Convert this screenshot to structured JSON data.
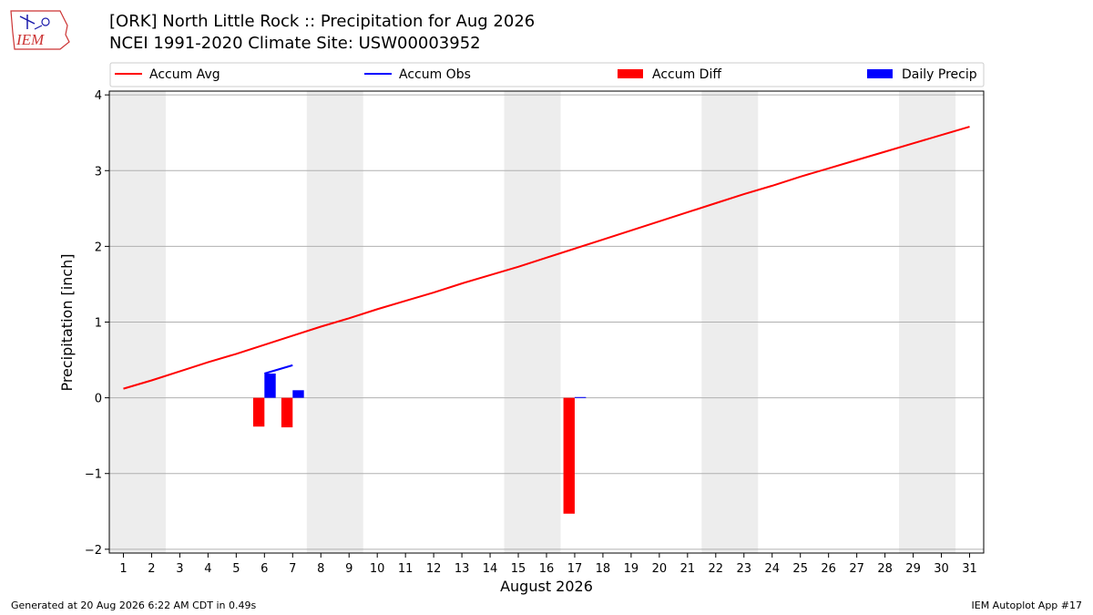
{
  "header": {
    "title_line1": "[ORK] North Little Rock :: Precipitation for Aug 2026",
    "title_line2": "NCEI 1991-2020 Climate Site: USW00003952",
    "logo_text": "IEM"
  },
  "footer": {
    "generated": "Generated at 20 Aug 2026 6:22 AM CDT in 0.49s",
    "app": "IEM Autoplot App #17"
  },
  "colors": {
    "accum_avg": "#ff0000",
    "accum_obs": "#0000ff",
    "accum_diff": "#ff0000",
    "daily_precip": "#0000ff",
    "weekend_band": "#ededed",
    "grid": "#b0b0b0"
  },
  "chart_data": {
    "type": "line",
    "xlabel": "August 2026",
    "ylabel": "Precipitation [inch]",
    "xlim": [
      0.5,
      31.5
    ],
    "ylim": [
      -2.05,
      4.05
    ],
    "yticks": [
      -2,
      -1,
      0,
      1,
      2,
      3,
      4
    ],
    "ytick_labels": [
      "−2",
      "−1",
      "0",
      "1",
      "2",
      "3",
      "4"
    ],
    "xticks": [
      1,
      2,
      3,
      4,
      5,
      6,
      7,
      8,
      9,
      10,
      11,
      12,
      13,
      14,
      15,
      16,
      17,
      18,
      19,
      20,
      21,
      22,
      23,
      24,
      25,
      26,
      27,
      28,
      29,
      30,
      31
    ],
    "grid": "horizontal",
    "legend_placement": "top, above plot",
    "weekend_days": [
      [
        1,
        2
      ],
      [
        8,
        9
      ],
      [
        15,
        16
      ],
      [
        22,
        23
      ],
      [
        29,
        30
      ]
    ],
    "legend": [
      {
        "label": "Accum Avg",
        "kind": "line",
        "color": "#ff0000"
      },
      {
        "label": "Accum Obs",
        "kind": "line",
        "color": "#0000ff"
      },
      {
        "label": "Accum Diff",
        "kind": "bar",
        "color": "#ff0000"
      },
      {
        "label": "Daily Precip",
        "kind": "bar",
        "color": "#0000ff"
      }
    ],
    "series": [
      {
        "name": "Accum Avg",
        "type": "line",
        "color": "#ff0000",
        "x": [
          1,
          2,
          3,
          4,
          5,
          6,
          7,
          8,
          9,
          10,
          11,
          12,
          13,
          14,
          15,
          16,
          17,
          18,
          19,
          20,
          21,
          22,
          23,
          24,
          25,
          26,
          27,
          28,
          29,
          30,
          31
        ],
        "values": [
          0.12,
          0.23,
          0.35,
          0.47,
          0.58,
          0.7,
          0.82,
          0.94,
          1.05,
          1.17,
          1.28,
          1.39,
          1.51,
          1.62,
          1.73,
          1.85,
          1.97,
          2.09,
          2.21,
          2.33,
          2.45,
          2.57,
          2.69,
          2.8,
          2.92,
          3.03,
          3.14,
          3.25,
          3.36,
          3.47,
          3.58
        ]
      },
      {
        "name": "Accum Obs",
        "type": "line",
        "color": "#0000ff",
        "x": [
          6,
          7
        ],
        "values": [
          0.32,
          0.43
        ]
      },
      {
        "name": "Accum Diff",
        "type": "bar",
        "color": "#ff0000",
        "x": [
          6,
          7,
          17
        ],
        "values": [
          -0.38,
          -0.39,
          -1.53
        ]
      },
      {
        "name": "Daily Precip",
        "type": "bar",
        "color": "#0000ff",
        "x": [
          6,
          7,
          17
        ],
        "values": [
          0.32,
          0.1,
          0.01
        ]
      }
    ]
  }
}
